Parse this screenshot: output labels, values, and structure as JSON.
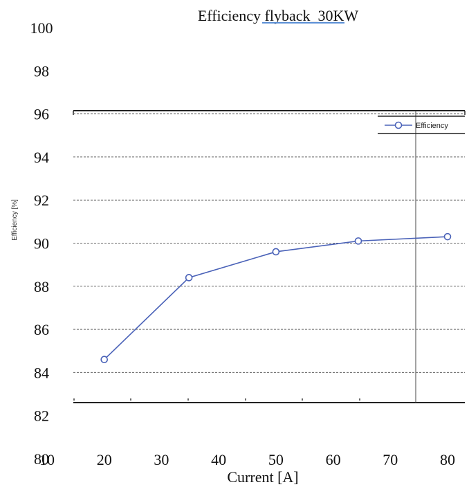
{
  "chart_data": {
    "type": "line",
    "title": "Efficiency flyback_30KW",
    "xlabel": "Current [A]",
    "ylabel": "Efficiency [%]",
    "xlim": [
      10,
      80
    ],
    "ylim": [
      80,
      100
    ],
    "x_ticks": [
      "10",
      "20",
      "30",
      "40",
      "50",
      "60",
      "70",
      "80"
    ],
    "y_ticks": [
      "80",
      "82",
      "84",
      "86",
      "88",
      "90",
      "92",
      "94",
      "96",
      "98",
      "100"
    ],
    "grid": true,
    "legend_position": "top-right",
    "series": [
      {
        "name": "Efficiency",
        "color": "#4a62b8",
        "marker": "open-circle",
        "x": [
          20,
          34.8,
          50,
          64.4,
          80
        ],
        "y": [
          84.6,
          88.4,
          89.6,
          90.1,
          90.3
        ]
      }
    ]
  }
}
